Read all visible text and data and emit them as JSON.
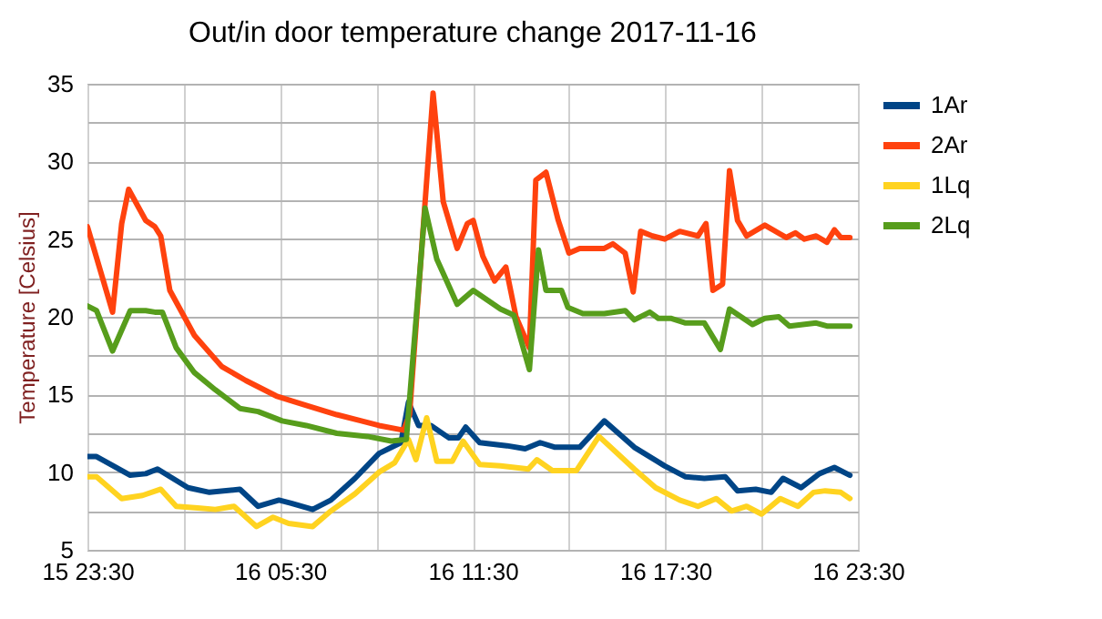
{
  "chart_data": {
    "type": "line",
    "title": "Out/in door temperature change 2017-11-16",
    "ylabel": "Temperature [Celsius]",
    "xlim": [
      "2017-11-15T23:30",
      "2017-11-16T23:30"
    ],
    "ylim": [
      5,
      35
    ],
    "xticks": [
      {
        "value": "2017-11-15T23:30",
        "label": "15 23:30"
      },
      {
        "value": "2017-11-16T02:30",
        "label": null
      },
      {
        "value": "2017-11-16T05:30",
        "label": "16 05:30"
      },
      {
        "value": "2017-11-16T08:30",
        "label": null
      },
      {
        "value": "2017-11-16T11:30",
        "label": "16 11:30"
      },
      {
        "value": "2017-11-16T14:30",
        "label": null
      },
      {
        "value": "2017-11-16T17:30",
        "label": "16 17:30"
      },
      {
        "value": "2017-11-16T20:30",
        "label": null
      },
      {
        "value": "2017-11-16T23:30",
        "label": "16 23:30"
      }
    ],
    "yticks": [
      5,
      {
        "value": 7.5,
        "label": null
      },
      10,
      {
        "value": 12.5,
        "label": null
      },
      15,
      {
        "value": 17.5,
        "label": null
      },
      20,
      {
        "value": 22.5,
        "label": null
      },
      25,
      {
        "value": 27.5,
        "label": null
      },
      30,
      {
        "value": 32.5,
        "label": null
      },
      35
    ],
    "grid": true,
    "legend": "right",
    "marker": "none",
    "line_style": "solid",
    "series": [
      {
        "name": "1Ar",
        "color": "#004586",
        "x": [
          "2017-11-15T23:30",
          "2017-11-15T23:47",
          "2017-11-16T00:50",
          "2017-11-16T01:19",
          "2017-11-16T01:41",
          "2017-11-16T02:38",
          "2017-11-16T03:18",
          "2017-11-16T04:15",
          "2017-11-16T04:49",
          "2017-11-16T05:28",
          "2017-11-16T05:51",
          "2017-11-16T06:31",
          "2017-11-16T07:05",
          "2017-11-16T07:50",
          "2017-11-16T08:35",
          "2017-11-16T09:16",
          "2017-11-16T09:30",
          "2017-11-16T09:49",
          "2017-11-16T10:12",
          "2017-11-16T10:46",
          "2017-11-16T11:03",
          "2017-11-16T11:17",
          "2017-11-16T11:43",
          "2017-11-16T12:34",
          "2017-11-16T13:08",
          "2017-11-16T13:36",
          "2017-11-16T14:04",
          "2017-11-16T14:50",
          "2017-11-16T15:36",
          "2017-11-16T16:32",
          "2017-11-16T17:29",
          "2017-11-16T18:08",
          "2017-11-16T18:43",
          "2017-11-16T19:22",
          "2017-11-16T19:45",
          "2017-11-16T20:19",
          "2017-11-16T20:48",
          "2017-11-16T21:10",
          "2017-11-16T21:44",
          "2017-11-16T22:18",
          "2017-11-16T22:46",
          "2017-11-16T23:15"
        ],
        "values": [
          11.0,
          11.0,
          9.8,
          9.9,
          10.2,
          9.0,
          8.7,
          8.9,
          7.8,
          8.2,
          8.0,
          7.6,
          8.2,
          9.6,
          11.2,
          11.9,
          14.5,
          13.0,
          13.0,
          12.2,
          12.2,
          12.9,
          11.9,
          11.7,
          11.5,
          11.9,
          11.6,
          11.6,
          13.3,
          11.6,
          10.4,
          9.7,
          9.6,
          9.7,
          8.8,
          8.9,
          8.7,
          9.6,
          9.0,
          9.9,
          10.3,
          9.8
        ]
      },
      {
        "name": "2Ar",
        "color": "#ff420e",
        "x": [
          "2017-11-15T23:30",
          "2017-11-16T00:17",
          "2017-11-16T00:34",
          "2017-11-16T00:47",
          "2017-11-16T01:19",
          "2017-11-16T01:36",
          "2017-11-16T01:47",
          "2017-11-16T02:04",
          "2017-11-16T02:50",
          "2017-11-16T03:41",
          "2017-11-16T04:26",
          "2017-11-16T05:23",
          "2017-11-16T06:19",
          "2017-11-16T07:16",
          "2017-11-16T08:02",
          "2017-11-16T08:35",
          "2017-11-16T09:21",
          "2017-11-16T09:32",
          "2017-11-16T10:16",
          "2017-11-16T10:35",
          "2017-11-16T11:01",
          "2017-11-16T11:20",
          "2017-11-16T11:31",
          "2017-11-16T11:49",
          "2017-11-16T12:11",
          "2017-11-16T12:32",
          "2017-11-16T12:51",
          "2017-11-16T13:16",
          "2017-11-16T13:28",
          "2017-11-16T13:47",
          "2017-11-16T14:10",
          "2017-11-16T14:30",
          "2017-11-16T14:50",
          "2017-11-16T15:36",
          "2017-11-16T15:52",
          "2017-11-16T16:15",
          "2017-11-16T16:30",
          "2017-11-16T16:44",
          "2017-11-16T17:06",
          "2017-11-16T17:29",
          "2017-11-16T17:57",
          "2017-11-16T18:31",
          "2017-11-16T18:46",
          "2017-11-16T18:59",
          "2017-11-16T19:17",
          "2017-11-16T19:30",
          "2017-11-16T19:45",
          "2017-11-16T20:02",
          "2017-11-16T20:36",
          "2017-11-16T21:16",
          "2017-11-16T21:33",
          "2017-11-16T21:50",
          "2017-11-16T22:12",
          "2017-11-16T22:32",
          "2017-11-16T22:46",
          "2017-11-16T22:58",
          "2017-11-16T23:15"
        ],
        "values": [
          25.8,
          20.3,
          26.0,
          28.2,
          26.2,
          25.8,
          25.2,
          21.7,
          18.8,
          16.8,
          15.9,
          14.9,
          14.3,
          13.7,
          13.3,
          13.0,
          12.7,
          13.7,
          34.4,
          27.4,
          24.4,
          26.0,
          26.2,
          23.9,
          22.3,
          23.2,
          20.0,
          18.0,
          28.8,
          29.3,
          26.2,
          24.1,
          24.4,
          24.4,
          24.7,
          24.1,
          21.6,
          25.5,
          25.2,
          25.0,
          25.5,
          25.2,
          26.0,
          21.7,
          22.1,
          29.4,
          26.2,
          25.2,
          25.9,
          25.1,
          25.4,
          25.0,
          25.2,
          24.8,
          25.6,
          25.1,
          25.1
        ]
      },
      {
        "name": "1Lq",
        "color": "#ffd320",
        "x": [
          "2017-11-15T23:30",
          "2017-11-15T23:47",
          "2017-11-16T00:34",
          "2017-11-16T01:13",
          "2017-11-16T01:47",
          "2017-11-16T02:16",
          "2017-11-16T02:56",
          "2017-11-16T03:29",
          "2017-11-16T04:04",
          "2017-11-16T04:46",
          "2017-11-16T05:17",
          "2017-11-16T05:46",
          "2017-11-16T06:31",
          "2017-11-16T07:05",
          "2017-11-16T07:50",
          "2017-11-16T08:35",
          "2017-11-16T09:04",
          "2017-11-16T09:30",
          "2017-11-16T09:44",
          "2017-11-16T10:04",
          "2017-11-16T10:23",
          "2017-11-16T10:52",
          "2017-11-16T11:12",
          "2017-11-16T11:43",
          "2017-11-16T12:22",
          "2017-11-16T13:14",
          "2017-11-16T13:30",
          "2017-11-16T13:59",
          "2017-11-16T14:44",
          "2017-11-16T15:26",
          "2017-11-16T16:32",
          "2017-11-16T17:12",
          "2017-11-16T17:57",
          "2017-11-16T18:31",
          "2017-11-16T19:05",
          "2017-11-16T19:34",
          "2017-11-16T20:02",
          "2017-11-16T20:30",
          "2017-11-16T21:05",
          "2017-11-16T21:38",
          "2017-11-16T22:07",
          "2017-11-16T22:29",
          "2017-11-16T22:58",
          "2017-11-16T23:15"
        ],
        "values": [
          9.7,
          9.7,
          8.3,
          8.5,
          8.9,
          7.8,
          7.7,
          7.6,
          7.8,
          6.5,
          7.1,
          6.7,
          6.5,
          7.5,
          8.6,
          10.0,
          10.6,
          12.1,
          10.8,
          13.5,
          10.7,
          10.7,
          12.0,
          10.5,
          10.4,
          10.2,
          10.8,
          10.1,
          10.1,
          12.3,
          10.2,
          9.0,
          8.2,
          7.8,
          8.3,
          7.5,
          7.8,
          7.3,
          8.3,
          7.8,
          8.7,
          8.8,
          8.7,
          8.3
        ]
      },
      {
        "name": "2Lq",
        "color": "#579d1c",
        "x": [
          "2017-11-15T23:30",
          "2017-11-15T23:47",
          "2017-11-16T00:17",
          "2017-11-16T00:50",
          "2017-11-16T01:19",
          "2017-11-16T01:36",
          "2017-11-16T01:50",
          "2017-11-16T02:16",
          "2017-11-16T02:50",
          "2017-11-16T03:29",
          "2017-11-16T04:15",
          "2017-11-16T04:49",
          "2017-11-16T05:34",
          "2017-11-16T06:19",
          "2017-11-16T07:16",
          "2017-11-16T08:13",
          "2017-11-16T08:58",
          "2017-11-16T09:26",
          "2017-11-16T10:01",
          "2017-11-16T10:23",
          "2017-11-16T11:01",
          "2017-11-16T11:31",
          "2017-11-16T12:22",
          "2017-11-16T12:47",
          "2017-11-16T13:16",
          "2017-11-16T13:33",
          "2017-11-16T13:47",
          "2017-11-16T14:16",
          "2017-11-16T14:28",
          "2017-11-16T14:56",
          "2017-11-16T15:36",
          "2017-11-16T16:15",
          "2017-11-16T16:32",
          "2017-11-16T17:01",
          "2017-11-16T17:17",
          "2017-11-16T17:40",
          "2017-11-16T18:08",
          "2017-11-16T18:43",
          "2017-11-16T19:13",
          "2017-11-16T19:30",
          "2017-11-16T20:13",
          "2017-11-16T20:36",
          "2017-11-16T21:02",
          "2017-11-16T21:22",
          "2017-11-16T22:12",
          "2017-11-16T22:32",
          "2017-11-16T23:15"
        ],
        "values": [
          20.7,
          20.4,
          17.8,
          20.4,
          20.4,
          20.3,
          20.3,
          18.0,
          16.4,
          15.3,
          14.1,
          13.9,
          13.3,
          13.0,
          12.5,
          12.3,
          12.0,
          12.1,
          27.0,
          23.7,
          20.8,
          21.7,
          20.5,
          20.1,
          16.6,
          24.3,
          21.7,
          21.7,
          20.6,
          20.2,
          20.2,
          20.4,
          19.8,
          20.3,
          19.9,
          19.9,
          19.6,
          19.6,
          17.9,
          20.5,
          19.5,
          19.9,
          20.0,
          19.4,
          19.6,
          19.4,
          19.4
        ]
      }
    ]
  }
}
